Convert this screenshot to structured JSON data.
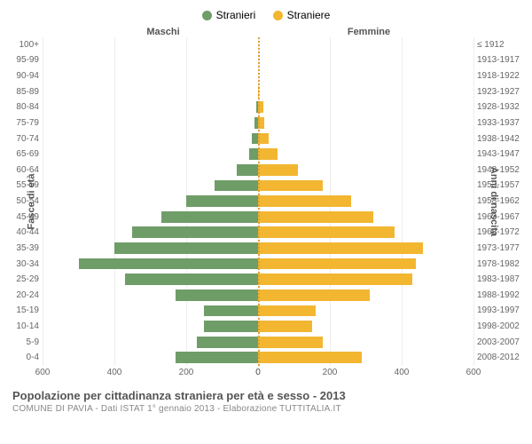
{
  "legend": {
    "male": {
      "label": "Stranieri",
      "color": "#6f9d68"
    },
    "female": {
      "label": "Straniere",
      "color": "#f2b631"
    }
  },
  "header": {
    "male": "Maschi",
    "female": "Femmine"
  },
  "axis_left_label": "Fasce di età",
  "axis_right_label": "Anni di nascita",
  "title": "Popolazione per cittadinanza straniera per età e sesso - 2013",
  "subtitle": "COMUNE DI PAVIA - Dati ISTAT 1° gennaio 2013 - Elaborazione TUTTITALIA.IT",
  "x_max": 600,
  "x_ticks": [
    0,
    200,
    400,
    600
  ],
  "grid_color": "#eeeeee",
  "center_line_color": "#e0a030",
  "bg": "#ffffff",
  "text_color": "#666666",
  "rows": [
    {
      "age": "100+",
      "birth": "≤ 1912",
      "m": 0,
      "f": 0
    },
    {
      "age": "95-99",
      "birth": "1913-1917",
      "m": 0,
      "f": 0
    },
    {
      "age": "90-94",
      "birth": "1918-1922",
      "m": 0,
      "f": 0
    },
    {
      "age": "85-89",
      "birth": "1923-1927",
      "m": 0,
      "f": 3
    },
    {
      "age": "80-84",
      "birth": "1928-1932",
      "m": 5,
      "f": 15
    },
    {
      "age": "75-79",
      "birth": "1933-1937",
      "m": 10,
      "f": 18
    },
    {
      "age": "70-74",
      "birth": "1938-1942",
      "m": 18,
      "f": 30
    },
    {
      "age": "65-69",
      "birth": "1943-1947",
      "m": 25,
      "f": 55
    },
    {
      "age": "60-64",
      "birth": "1948-1952",
      "m": 60,
      "f": 110
    },
    {
      "age": "55-59",
      "birth": "1953-1957",
      "m": 120,
      "f": 180
    },
    {
      "age": "50-54",
      "birth": "1958-1962",
      "m": 200,
      "f": 260
    },
    {
      "age": "45-49",
      "birth": "1963-1967",
      "m": 270,
      "f": 320
    },
    {
      "age": "40-44",
      "birth": "1968-1972",
      "m": 350,
      "f": 380
    },
    {
      "age": "35-39",
      "birth": "1973-1977",
      "m": 400,
      "f": 460
    },
    {
      "age": "30-34",
      "birth": "1978-1982",
      "m": 500,
      "f": 440
    },
    {
      "age": "25-29",
      "birth": "1983-1987",
      "m": 370,
      "f": 430
    },
    {
      "age": "20-24",
      "birth": "1988-1992",
      "m": 230,
      "f": 310
    },
    {
      "age": "15-19",
      "birth": "1993-1997",
      "m": 150,
      "f": 160
    },
    {
      "age": "10-14",
      "birth": "1998-2002",
      "m": 150,
      "f": 150
    },
    {
      "age": "5-9",
      "birth": "2003-2007",
      "m": 170,
      "f": 180
    },
    {
      "age": "0-4",
      "birth": "2008-2012",
      "m": 230,
      "f": 290
    }
  ]
}
